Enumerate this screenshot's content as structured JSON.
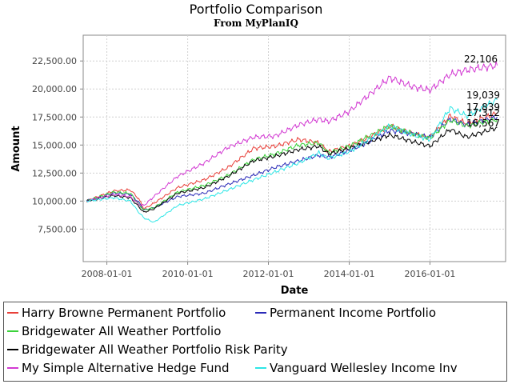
{
  "chart_data": {
    "type": "line",
    "title": "Portfolio Comparison",
    "subtitle": "From MyPlanIQ",
    "xlabel": "Date",
    "ylabel": "Amount",
    "x_ticks": [
      "2008-01-01",
      "2010-01-01",
      "2012-01-01",
      "2014-01-01",
      "2016-01-01"
    ],
    "y_ticks": [
      "7,500.00",
      "10,000.00",
      "12,500.00",
      "15,000.00",
      "17,500.00",
      "20,000.00",
      "22,500.00"
    ],
    "xlim": [
      "2007-06-01",
      "2017-11-15"
    ],
    "ylim": [
      4600,
      24800
    ],
    "grid": true,
    "legend_position": "bottom",
    "series": [
      {
        "name": "Harry Browne Permanent Portfolio",
        "color": "#e8403a",
        "end_label": "17,839",
        "points": [
          [
            "2007-07-01",
            10000
          ],
          [
            "2008-03-01",
            10900
          ],
          [
            "2008-08-01",
            11000
          ],
          [
            "2008-10-15",
            10200
          ],
          [
            "2008-12-01",
            9300
          ],
          [
            "2009-03-01",
            9800
          ],
          [
            "2009-10-01",
            11200
          ],
          [
            "2010-06-01",
            11900
          ],
          [
            "2011-01-01",
            13000
          ],
          [
            "2011-08-20",
            14700
          ],
          [
            "2012-03-01",
            14900
          ],
          [
            "2012-10-01",
            15500
          ],
          [
            "2013-04-01",
            15200
          ],
          [
            "2013-06-28",
            14400
          ],
          [
            "2014-01-01",
            14900
          ],
          [
            "2014-07-01",
            15700
          ],
          [
            "2015-01-01",
            16700
          ],
          [
            "2015-08-01",
            16000
          ],
          [
            "2015-12-31",
            15700
          ],
          [
            "2016-07-01",
            17600
          ],
          [
            "2016-12-01",
            16900
          ],
          [
            "2017-08-31",
            17839
          ]
        ]
      },
      {
        "name": "Permanent Income Portfolio",
        "color": "#2b2bb8",
        "end_label": "",
        "points": [
          [
            "2007-07-01",
            10000
          ],
          [
            "2008-03-01",
            10700
          ],
          [
            "2008-08-01",
            10600
          ],
          [
            "2008-10-15",
            9900
          ],
          [
            "2008-12-01",
            9200
          ],
          [
            "2009-03-01",
            9400
          ],
          [
            "2009-10-01",
            10400
          ],
          [
            "2010-06-01",
            10700
          ],
          [
            "2011-01-01",
            11500
          ],
          [
            "2011-08-20",
            12300
          ],
          [
            "2012-03-01",
            13000
          ],
          [
            "2012-10-01",
            13600
          ],
          [
            "2013-04-01",
            14100
          ],
          [
            "2013-06-28",
            13900
          ],
          [
            "2014-01-01",
            14500
          ],
          [
            "2014-07-01",
            15300
          ],
          [
            "2015-01-01",
            16300
          ],
          [
            "2015-08-01",
            16000
          ],
          [
            "2015-12-31",
            15700
          ],
          [
            "2016-07-01",
            17300
          ],
          [
            "2016-12-01",
            16800
          ],
          [
            "2017-08-31",
            17500
          ]
        ]
      },
      {
        "name": "Bridgewater All Weather Portfolio",
        "color": "#3cd23c",
        "end_label": "17,312",
        "points": [
          [
            "2007-07-01",
            10000
          ],
          [
            "2008-03-01",
            10800
          ],
          [
            "2008-08-01",
            10700
          ],
          [
            "2008-10-15",
            9700
          ],
          [
            "2008-12-01",
            9200
          ],
          [
            "2009-03-01",
            9400
          ],
          [
            "2009-10-01",
            10800
          ],
          [
            "2010-06-01",
            11400
          ],
          [
            "2011-01-01",
            12300
          ],
          [
            "2011-08-20",
            13700
          ],
          [
            "2012-03-01",
            14200
          ],
          [
            "2012-10-01",
            15000
          ],
          [
            "2013-04-01",
            15200
          ],
          [
            "2013-06-28",
            14300
          ],
          [
            "2014-01-01",
            14900
          ],
          [
            "2014-07-01",
            15800
          ],
          [
            "2015-01-01",
            16700
          ],
          [
            "2015-08-01",
            16000
          ],
          [
            "2015-12-31",
            15600
          ],
          [
            "2016-07-01",
            17200
          ],
          [
            "2016-12-01",
            16700
          ],
          [
            "2017-08-31",
            17312
          ]
        ]
      },
      {
        "name": "Bridgewater All Weather Portfolio Risk Parity",
        "color": "#000000",
        "end_label": "16,567",
        "points": [
          [
            "2007-07-01",
            10000
          ],
          [
            "2008-03-01",
            10500
          ],
          [
            "2008-08-01",
            10300
          ],
          [
            "2008-10-15",
            9500
          ],
          [
            "2008-12-01",
            9000
          ],
          [
            "2009-03-01",
            9300
          ],
          [
            "2009-10-01",
            10700
          ],
          [
            "2010-06-01",
            11200
          ],
          [
            "2011-01-01",
            12200
          ],
          [
            "2011-08-20",
            13600
          ],
          [
            "2012-03-01",
            14000
          ],
          [
            "2012-10-01",
            14600
          ],
          [
            "2013-04-01",
            14900
          ],
          [
            "2013-06-28",
            14200
          ],
          [
            "2014-01-01",
            14700
          ],
          [
            "2014-07-01",
            15300
          ],
          [
            "2015-01-01",
            15900
          ],
          [
            "2015-08-01",
            15300
          ],
          [
            "2015-12-31",
            14900
          ],
          [
            "2016-07-01",
            16400
          ],
          [
            "2016-12-01",
            15700
          ],
          [
            "2017-08-31",
            16567
          ]
        ]
      },
      {
        "name": "My Simple Alternative Hedge Fund",
        "color": "#d23ad2",
        "end_label": "22,106",
        "points": [
          [
            "2007-07-01",
            10000
          ],
          [
            "2008-03-01",
            10600
          ],
          [
            "2008-08-01",
            10400
          ],
          [
            "2008-10-15",
            9700
          ],
          [
            "2008-12-01",
            9600
          ],
          [
            "2009-03-01",
            10400
          ],
          [
            "2009-10-01",
            12200
          ],
          [
            "2010-06-01",
            13400
          ],
          [
            "2011-01-01",
            14800
          ],
          [
            "2011-08-20",
            15700
          ],
          [
            "2012-03-01",
            15800
          ],
          [
            "2012-10-01",
            16800
          ],
          [
            "2013-04-01",
            17300
          ],
          [
            "2013-06-28",
            17100
          ],
          [
            "2014-01-01",
            18000
          ],
          [
            "2014-07-01",
            19500
          ],
          [
            "2015-01-01",
            21000
          ],
          [
            "2015-08-01",
            20200
          ],
          [
            "2015-12-31",
            19900
          ],
          [
            "2016-07-01",
            21300
          ],
          [
            "2016-12-01",
            21700
          ],
          [
            "2017-08-31",
            22106
          ]
        ]
      },
      {
        "name": "Vanguard Wellesley Income Inv",
        "color": "#2ee6e6",
        "end_label": "19,039",
        "points": [
          [
            "2007-07-01",
            10000
          ],
          [
            "2008-03-01",
            10300
          ],
          [
            "2008-08-01",
            10000
          ],
          [
            "2008-10-15",
            9000
          ],
          [
            "2008-12-01",
            8500
          ],
          [
            "2009-03-01",
            8100
          ],
          [
            "2009-10-01",
            9600
          ],
          [
            "2010-06-01",
            10200
          ],
          [
            "2011-01-01",
            11000
          ],
          [
            "2011-08-20",
            11900
          ],
          [
            "2012-03-01",
            12600
          ],
          [
            "2012-10-01",
            13400
          ],
          [
            "2013-04-01",
            14300
          ],
          [
            "2013-06-28",
            13800
          ],
          [
            "2014-01-01",
            14400
          ],
          [
            "2014-07-01",
            15500
          ],
          [
            "2015-01-01",
            16700
          ],
          [
            "2015-08-01",
            15900
          ],
          [
            "2015-12-31",
            15500
          ],
          [
            "2016-07-01",
            18300
          ],
          [
            "2016-12-01",
            17600
          ],
          [
            "2017-08-31",
            19039
          ]
        ]
      }
    ],
    "end_label_order": [
      "22,106",
      "19,039",
      "17,839",
      "17,312",
      "16,567"
    ]
  },
  "legend": {
    "rows": [
      [
        0,
        1
      ],
      [
        2
      ],
      [
        3
      ],
      [
        4,
        5
      ]
    ]
  }
}
